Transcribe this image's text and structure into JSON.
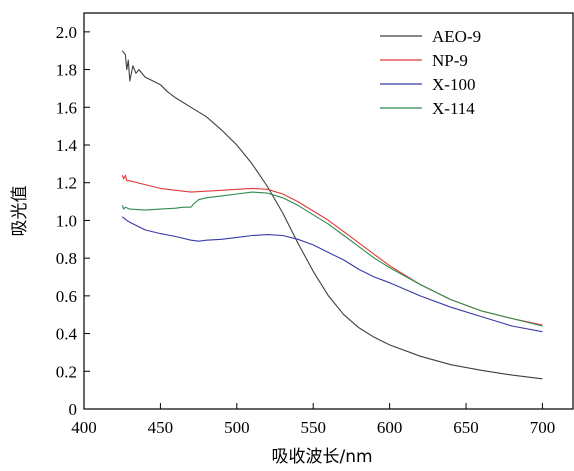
{
  "chart_data": {
    "type": "line",
    "xlabel": "吸收波长/nm",
    "ylabel": "吸光值",
    "xlim": [
      400,
      720
    ],
    "ylim": [
      0,
      2.1
    ],
    "xticks": [
      400,
      450,
      500,
      550,
      600,
      650,
      700
    ],
    "xtick_labels": [
      "400",
      "450",
      "500",
      "550",
      "600",
      "650",
      "700"
    ],
    "yticks": [
      0,
      0.2,
      0.4,
      0.6,
      0.8,
      1.0,
      1.2,
      1.4,
      1.6,
      1.8,
      2.0
    ],
    "ytick_labels": [
      "0",
      "0.2",
      "0.4",
      "0.6",
      "0.8",
      "1.0",
      "1.2",
      "1.4",
      "1.6",
      "1.8",
      "2.0"
    ],
    "grid": false,
    "legend_position": "top-right",
    "series": [
      {
        "name": "AEO-9",
        "color": "#404040",
        "points": [
          [
            425,
            1.9
          ],
          [
            427,
            1.88
          ],
          [
            428,
            1.8
          ],
          [
            429,
            1.85
          ],
          [
            430,
            1.74
          ],
          [
            432,
            1.82
          ],
          [
            434,
            1.78
          ],
          [
            436,
            1.8
          ],
          [
            440,
            1.76
          ],
          [
            445,
            1.74
          ],
          [
            450,
            1.72
          ],
          [
            455,
            1.68
          ],
          [
            460,
            1.65
          ],
          [
            470,
            1.6
          ],
          [
            480,
            1.55
          ],
          [
            490,
            1.48
          ],
          [
            500,
            1.4
          ],
          [
            510,
            1.3
          ],
          [
            520,
            1.18
          ],
          [
            530,
            1.04
          ],
          [
            540,
            0.88
          ],
          [
            550,
            0.73
          ],
          [
            560,
            0.6
          ],
          [
            570,
            0.5
          ],
          [
            580,
            0.43
          ],
          [
            590,
            0.38
          ],
          [
            600,
            0.34
          ],
          [
            620,
            0.28
          ],
          [
            640,
            0.235
          ],
          [
            660,
            0.205
          ],
          [
            680,
            0.18
          ],
          [
            700,
            0.16
          ]
        ]
      },
      {
        "name": "NP-9",
        "color": "#e03a3a",
        "points": [
          [
            425,
            1.24
          ],
          [
            426,
            1.22
          ],
          [
            427,
            1.24
          ],
          [
            428,
            1.21
          ],
          [
            430,
            1.21
          ],
          [
            440,
            1.19
          ],
          [
            450,
            1.17
          ],
          [
            460,
            1.16
          ],
          [
            470,
            1.15
          ],
          [
            480,
            1.155
          ],
          [
            490,
            1.16
          ],
          [
            500,
            1.165
          ],
          [
            510,
            1.17
          ],
          [
            520,
            1.165
          ],
          [
            530,
            1.14
          ],
          [
            540,
            1.1
          ],
          [
            550,
            1.05
          ],
          [
            560,
            1.0
          ],
          [
            570,
            0.94
          ],
          [
            580,
            0.88
          ],
          [
            590,
            0.82
          ],
          [
            600,
            0.76
          ],
          [
            620,
            0.66
          ],
          [
            640,
            0.58
          ],
          [
            660,
            0.52
          ],
          [
            680,
            0.48
          ],
          [
            700,
            0.445
          ]
        ]
      },
      {
        "name": "X-100",
        "color": "#3a3aa8",
        "points": [
          [
            425,
            1.02
          ],
          [
            428,
            1.0
          ],
          [
            430,
            0.99
          ],
          [
            435,
            0.97
          ],
          [
            440,
            0.95
          ],
          [
            450,
            0.93
          ],
          [
            460,
            0.915
          ],
          [
            470,
            0.895
          ],
          [
            475,
            0.89
          ],
          [
            480,
            0.895
          ],
          [
            490,
            0.9
          ],
          [
            500,
            0.91
          ],
          [
            510,
            0.92
          ],
          [
            520,
            0.925
          ],
          [
            530,
            0.92
          ],
          [
            540,
            0.9
          ],
          [
            550,
            0.87
          ],
          [
            560,
            0.83
          ],
          [
            570,
            0.79
          ],
          [
            580,
            0.74
          ],
          [
            590,
            0.7
          ],
          [
            600,
            0.67
          ],
          [
            620,
            0.6
          ],
          [
            640,
            0.54
          ],
          [
            660,
            0.49
          ],
          [
            680,
            0.44
          ],
          [
            700,
            0.41
          ]
        ]
      },
      {
        "name": "X-114",
        "color": "#2e8b4e",
        "points": [
          [
            425,
            1.08
          ],
          [
            426,
            1.06
          ],
          [
            427,
            1.07
          ],
          [
            430,
            1.06
          ],
          [
            440,
            1.055
          ],
          [
            450,
            1.06
          ],
          [
            460,
            1.065
          ],
          [
            465,
            1.07
          ],
          [
            470,
            1.07
          ],
          [
            472,
            1.09
          ],
          [
            475,
            1.11
          ],
          [
            480,
            1.12
          ],
          [
            490,
            1.13
          ],
          [
            500,
            1.14
          ],
          [
            510,
            1.15
          ],
          [
            520,
            1.145
          ],
          [
            530,
            1.12
          ],
          [
            540,
            1.08
          ],
          [
            550,
            1.03
          ],
          [
            560,
            0.98
          ],
          [
            570,
            0.92
          ],
          [
            580,
            0.86
          ],
          [
            590,
            0.8
          ],
          [
            600,
            0.75
          ],
          [
            620,
            0.66
          ],
          [
            640,
            0.58
          ],
          [
            660,
            0.52
          ],
          [
            680,
            0.48
          ],
          [
            700,
            0.44
          ]
        ]
      }
    ]
  }
}
